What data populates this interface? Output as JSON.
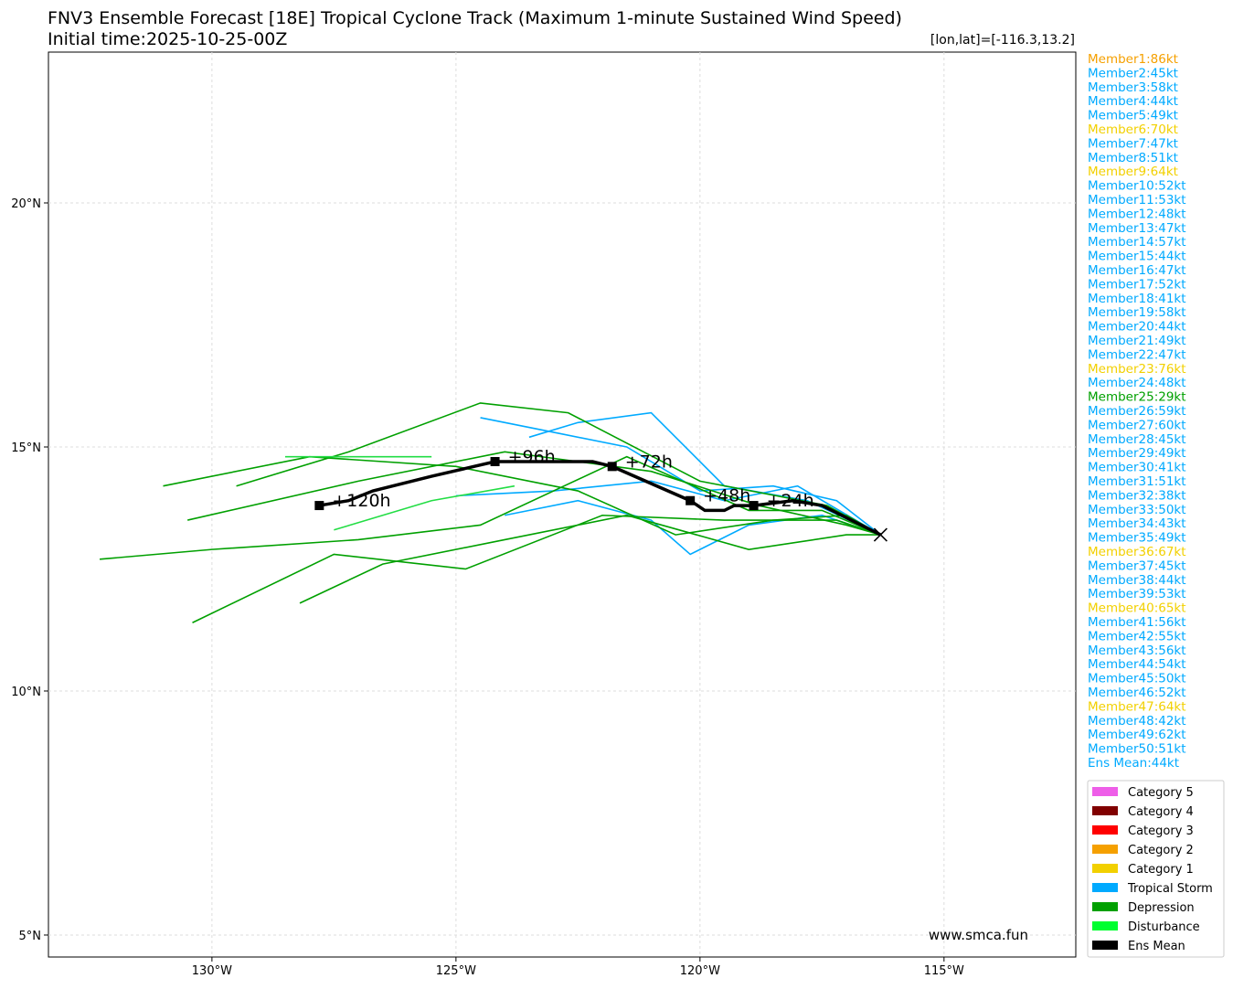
{
  "chart_data": {
    "type": "track-map",
    "title": "FNV3 Ensemble Forecast [18E] Tropical Cyclone Track (Maximum 1-minute Sustained Wind Speed)",
    "subtitle": "Initial time:2025-10-25-00Z",
    "position_label": "[lon,lat]=[-116.3,13.2]",
    "watermark": "www.smca.fun",
    "xlim": [
      -133.35,
      -112.3
    ],
    "ylim": [
      4.55,
      23.09
    ],
    "xticks": [
      {
        "value": -130,
        "label": "130°W"
      },
      {
        "value": -125,
        "label": "125°W"
      },
      {
        "value": -120,
        "label": "120°W"
      },
      {
        "value": -115,
        "label": "115°W"
      }
    ],
    "yticks": [
      {
        "value": 5,
        "label": "5°N"
      },
      {
        "value": 10,
        "label": "10°N"
      },
      {
        "value": 15,
        "label": "15°N"
      },
      {
        "value": 20,
        "label": "20°N"
      }
    ],
    "grid": true,
    "tracks": [
      {
        "color": "#00aaff",
        "lon": [
          -116.3,
          -117.2,
          -118.5,
          -120,
          -121.5,
          -123,
          -124.5
        ],
        "lat": [
          13.2,
          13.9,
          14.2,
          14.1,
          15.0,
          15.3,
          15.6
        ]
      },
      {
        "color": "#00aaff",
        "lon": [
          -116.3,
          -117.5,
          -119,
          -120.2,
          -121,
          -122.5,
          -124
        ],
        "lat": [
          13.2,
          13.6,
          13.4,
          12.8,
          13.5,
          13.9,
          13.6
        ]
      },
      {
        "color": "#00aaff",
        "lon": [
          -116.3,
          -117.8,
          -119.5,
          -121,
          -122.5,
          -123.5
        ],
        "lat": [
          13.2,
          13.9,
          14.2,
          15.7,
          15.5,
          15.2
        ]
      },
      {
        "color": "#00aaff",
        "lon": [
          -116.3,
          -118,
          -119.5,
          -121,
          -123,
          -125
        ],
        "lat": [
          13.2,
          14.2,
          13.9,
          14.3,
          14.1,
          14.0
        ]
      },
      {
        "color": "#00a000",
        "lon": [
          -116.3,
          -117,
          -118.5,
          -120.5,
          -122.5,
          -125,
          -128,
          -131
        ],
        "lat": [
          13.2,
          13.6,
          13.5,
          13.2,
          14.1,
          14.6,
          14.8,
          14.2
        ]
      },
      {
        "color": "#00a000",
        "lon": [
          -116.3,
          -117.5,
          -119,
          -121.5,
          -124.5,
          -127,
          -130,
          -132.3
        ],
        "lat": [
          13.2,
          13.7,
          13.7,
          14.8,
          13.4,
          13.1,
          12.9,
          12.7
        ]
      },
      {
        "color": "#00a000",
        "lon": [
          -116.3,
          -117,
          -118.8,
          -121,
          -124,
          -127,
          -130.5
        ],
        "lat": [
          13.2,
          13.4,
          13.8,
          14.5,
          14.9,
          14.3,
          13.5
        ]
      },
      {
        "color": "#00a000",
        "lon": [
          -116.3,
          -117.2,
          -119.5,
          -122,
          -124.8,
          -127.5,
          -130.4
        ],
        "lat": [
          13.2,
          13.5,
          13.5,
          13.6,
          12.5,
          12.8,
          11.4
        ]
      },
      {
        "color": "#00a000",
        "lon": [
          -116.3,
          -117.4,
          -120,
          -122.7,
          -124.5,
          -127.2,
          -129.5
        ],
        "lat": [
          13.2,
          13.8,
          14.3,
          15.7,
          15.9,
          14.9,
          14.2
        ]
      },
      {
        "color": "#00a000",
        "lon": [
          -116.3,
          -117,
          -119,
          -121.5,
          -124,
          -126.5,
          -128.2
        ],
        "lat": [
          13.2,
          13.2,
          12.9,
          13.6,
          13.1,
          12.6,
          11.8
        ]
      },
      {
        "color": "#22dd44",
        "lon": [
          -123.8,
          -125.5,
          -127.5
        ],
        "lat": [
          14.2,
          13.9,
          13.3
        ]
      },
      {
        "color": "#22dd44",
        "lon": [
          -125.5,
          -127,
          -128.5
        ],
        "lat": [
          14.8,
          14.8,
          14.8
        ]
      }
    ],
    "mean_track": {
      "color": "#000000",
      "lon": [
        -116.3,
        -116.9,
        -117.5,
        -118.1,
        -118.9,
        -119.3,
        -119.5,
        -119.9,
        -120.2,
        -121.8,
        -122.2,
        -123.2,
        -124.2,
        -125.5,
        -126.7,
        -127.2,
        -127.8
      ],
      "lat": [
        13.2,
        13.5,
        13.8,
        13.9,
        13.8,
        13.8,
        13.7,
        13.7,
        13.9,
        14.6,
        14.7,
        14.7,
        14.7,
        14.4,
        14.1,
        13.9,
        13.8
      ],
      "labels": [
        null,
        null,
        null,
        null,
        "+24h",
        null,
        null,
        null,
        "+48h",
        "+72h",
        null,
        null,
        "+96h",
        null,
        null,
        null,
        "+120h"
      ]
    },
    "members": [
      {
        "label": "Member1:86kt",
        "color": "#f5a000"
      },
      {
        "label": "Member2:45kt",
        "color": "#00aaff"
      },
      {
        "label": "Member3:58kt",
        "color": "#00aaff"
      },
      {
        "label": "Member4:44kt",
        "color": "#00aaff"
      },
      {
        "label": "Member5:49kt",
        "color": "#00aaff"
      },
      {
        "label": "Member6:70kt",
        "color": "#f2d000"
      },
      {
        "label": "Member7:47kt",
        "color": "#00aaff"
      },
      {
        "label": "Member8:51kt",
        "color": "#00aaff"
      },
      {
        "label": "Member9:64kt",
        "color": "#f2d000"
      },
      {
        "label": "Member10:52kt",
        "color": "#00aaff"
      },
      {
        "label": "Member11:53kt",
        "color": "#00aaff"
      },
      {
        "label": "Member12:48kt",
        "color": "#00aaff"
      },
      {
        "label": "Member13:47kt",
        "color": "#00aaff"
      },
      {
        "label": "Member14:57kt",
        "color": "#00aaff"
      },
      {
        "label": "Member15:44kt",
        "color": "#00aaff"
      },
      {
        "label": "Member16:47kt",
        "color": "#00aaff"
      },
      {
        "label": "Member17:52kt",
        "color": "#00aaff"
      },
      {
        "label": "Member18:41kt",
        "color": "#00aaff"
      },
      {
        "label": "Member19:58kt",
        "color": "#00aaff"
      },
      {
        "label": "Member20:44kt",
        "color": "#00aaff"
      },
      {
        "label": "Member21:49kt",
        "color": "#00aaff"
      },
      {
        "label": "Member22:47kt",
        "color": "#00aaff"
      },
      {
        "label": "Member23:76kt",
        "color": "#f2d000"
      },
      {
        "label": "Member24:48kt",
        "color": "#00aaff"
      },
      {
        "label": "Member25:29kt",
        "color": "#00a000"
      },
      {
        "label": "Member26:59kt",
        "color": "#00aaff"
      },
      {
        "label": "Member27:60kt",
        "color": "#00aaff"
      },
      {
        "label": "Member28:45kt",
        "color": "#00aaff"
      },
      {
        "label": "Member29:49kt",
        "color": "#00aaff"
      },
      {
        "label": "Member30:41kt",
        "color": "#00aaff"
      },
      {
        "label": "Member31:51kt",
        "color": "#00aaff"
      },
      {
        "label": "Member32:38kt",
        "color": "#00aaff"
      },
      {
        "label": "Member33:50kt",
        "color": "#00aaff"
      },
      {
        "label": "Member34:43kt",
        "color": "#00aaff"
      },
      {
        "label": "Member35:49kt",
        "color": "#00aaff"
      },
      {
        "label": "Member36:67kt",
        "color": "#f2d000"
      },
      {
        "label": "Member37:45kt",
        "color": "#00aaff"
      },
      {
        "label": "Member38:44kt",
        "color": "#00aaff"
      },
      {
        "label": "Member39:53kt",
        "color": "#00aaff"
      },
      {
        "label": "Member40:65kt",
        "color": "#f2d000"
      },
      {
        "label": "Member41:56kt",
        "color": "#00aaff"
      },
      {
        "label": "Member42:55kt",
        "color": "#00aaff"
      },
      {
        "label": "Member43:56kt",
        "color": "#00aaff"
      },
      {
        "label": "Member44:54kt",
        "color": "#00aaff"
      },
      {
        "label": "Member45:50kt",
        "color": "#00aaff"
      },
      {
        "label": "Member46:52kt",
        "color": "#00aaff"
      },
      {
        "label": "Member47:64kt",
        "color": "#f2d000"
      },
      {
        "label": "Member48:42kt",
        "color": "#00aaff"
      },
      {
        "label": "Member49:62kt",
        "color": "#00aaff"
      },
      {
        "label": "Member50:51kt",
        "color": "#00aaff"
      },
      {
        "label": "Ens Mean:44kt",
        "color": "#00aaff"
      }
    ],
    "legend": [
      {
        "name": "Category 5",
        "color": "#ee5ee8"
      },
      {
        "name": "Category 4",
        "color": "#800000"
      },
      {
        "name": "Category 3",
        "color": "#ff0000"
      },
      {
        "name": "Category 2",
        "color": "#f5a000"
      },
      {
        "name": "Category 1",
        "color": "#f2d000"
      },
      {
        "name": "Tropical Storm",
        "color": "#00aaff"
      },
      {
        "name": "Depression",
        "color": "#00a000"
      },
      {
        "name": "Disturbance",
        "color": "#00ff30"
      },
      {
        "name": "Ens Mean",
        "color": "#000000"
      }
    ]
  }
}
